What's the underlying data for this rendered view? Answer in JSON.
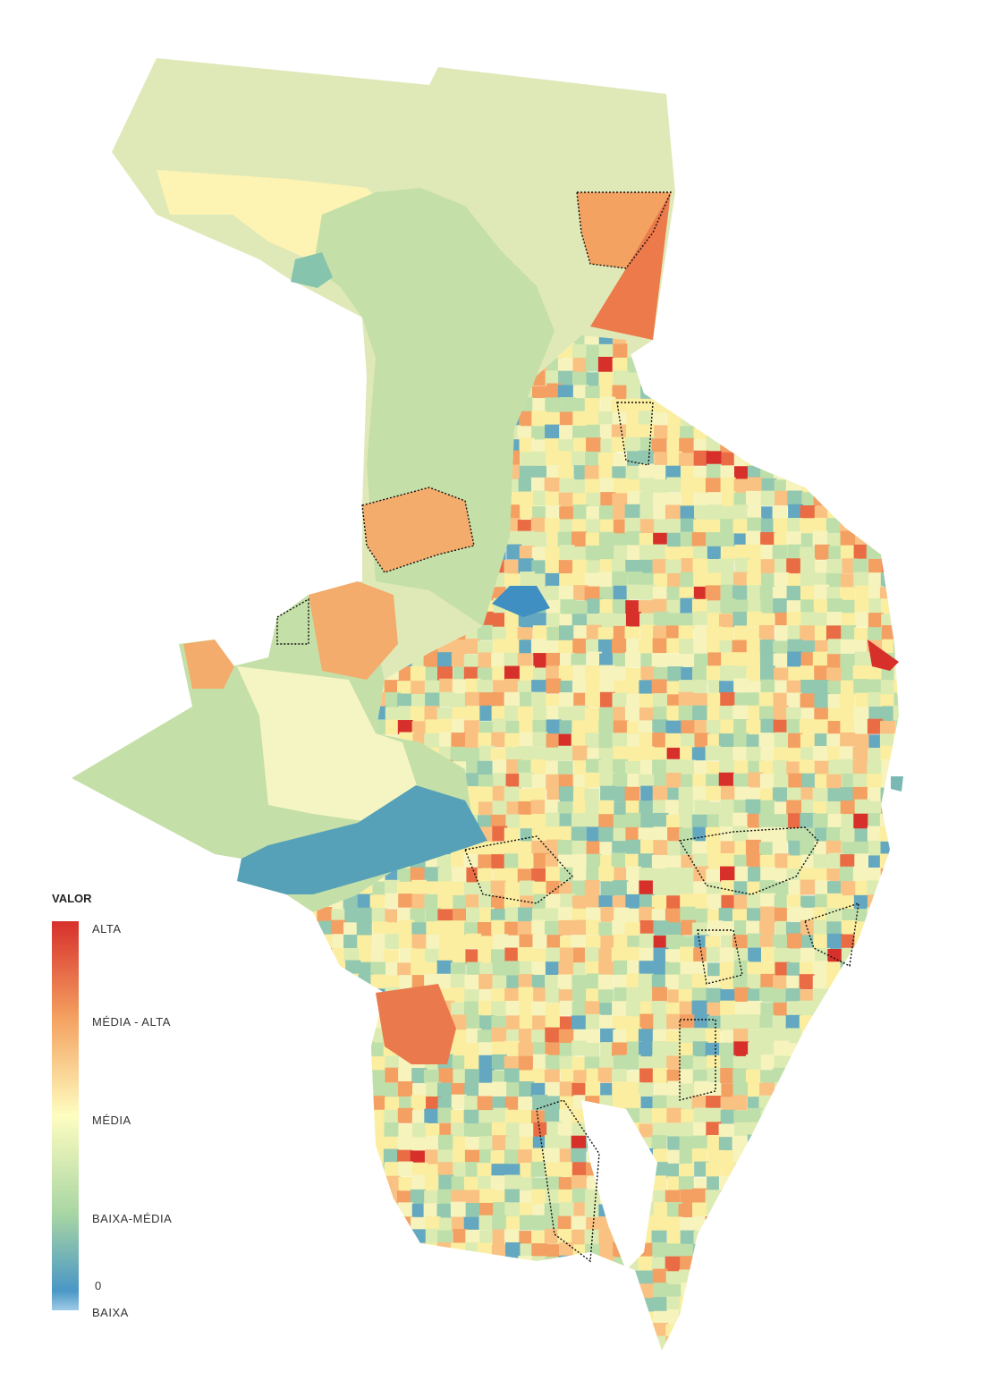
{
  "legend": {
    "title": "VALOR",
    "labels": [
      "ALTA",
      "MÉDIA - ALTA",
      "MÉDIA",
      "BAIXA-MÉDIA",
      "0",
      "BAIXA"
    ]
  }
}
